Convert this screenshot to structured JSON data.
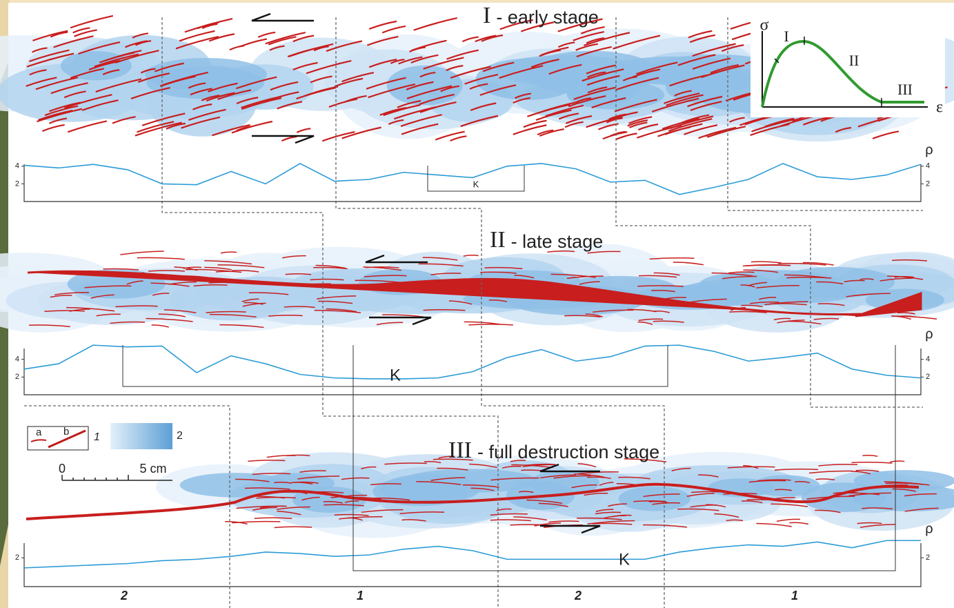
{
  "stages": [
    {
      "numeral": "I",
      "label": "- early stage",
      "axis_label": "ρ",
      "k_label": "K",
      "ylim": [
        0,
        5
      ],
      "yticks": [
        2,
        4
      ],
      "values": [
        4.1,
        3.8,
        4.2,
        3.6,
        2.0,
        1.9,
        3.4,
        2.0,
        4.3,
        2.3,
        2.5,
        3.3,
        3.0,
        2.7,
        4.0,
        4.3,
        3.7,
        2.2,
        2.4,
        0.8,
        1.6,
        2.5,
        4.3,
        2.8,
        2.5,
        3.0,
        4.2
      ]
    },
    {
      "numeral": "II",
      "label": "- late stage",
      "axis_label": "ρ",
      "k_label": "K",
      "ylim": [
        0,
        6
      ],
      "yticks": [
        2,
        4
      ],
      "values": [
        2.9,
        3.5,
        5.6,
        5.4,
        5.5,
        2.5,
        4.4,
        3.5,
        2.3,
        1.9,
        1.8,
        1.8,
        1.9,
        2.6,
        4.2,
        5.1,
        3.8,
        4.3,
        5.5,
        5.6,
        4.9,
        3.8,
        4.2,
        4.7,
        2.9,
        2.2,
        1.9
      ]
    },
    {
      "numeral": "III",
      "label": "- full destruction  stage",
      "axis_label": "ρ",
      "k_label": "K",
      "ylim": [
        0,
        3.5
      ],
      "yticks": [
        2
      ],
      "values": [
        1.3,
        1.4,
        1.5,
        1.6,
        1.8,
        1.9,
        2.1,
        2.4,
        2.3,
        2.1,
        2.2,
        2.6,
        2.8,
        2.5,
        1.9,
        1.9,
        1.9,
        1.9,
        1.9,
        2.4,
        2.7,
        2.9,
        2.8,
        3.1,
        2.7,
        3.2,
        3.2
      ]
    }
  ],
  "inset": {
    "y_label": "σ",
    "x_label": "ε",
    "phases": [
      "I",
      "II",
      "III"
    ]
  },
  "legend": {
    "a": "a",
    "b": "b",
    "item1": "1",
    "item2": "2",
    "scale_start": "0",
    "scale_end": "5 cm"
  },
  "zones": [
    "2",
    "1",
    "2",
    "1"
  ]
}
